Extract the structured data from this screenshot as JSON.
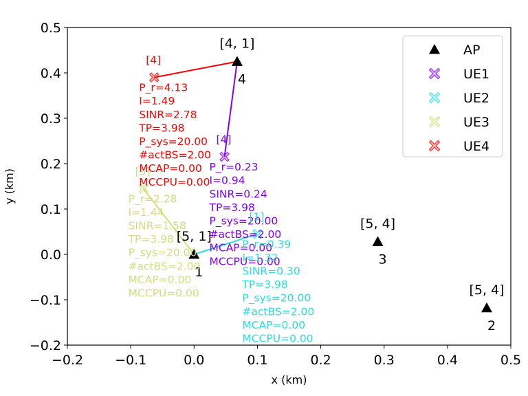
{
  "chart_data": {
    "type": "scatter",
    "xlabel": "x (km)",
    "ylabel": "y (km)",
    "xlim": [
      -0.2,
      0.5
    ],
    "ylim": [
      -0.2,
      0.5
    ],
    "xticks": [
      "−0.2",
      "−0.1",
      "0.0",
      "0.1",
      "0.2",
      "0.3",
      "0.4",
      "0.5"
    ],
    "yticks": [
      "−0.2",
      "−0.1",
      "0.0",
      "0.1",
      "0.2",
      "0.3",
      "0.4",
      "0.5"
    ],
    "xtick_values": [
      -0.2,
      -0.1,
      0.0,
      0.1,
      0.2,
      0.3,
      0.4,
      0.5
    ],
    "ytick_values": [
      -0.2,
      -0.1,
      0.0,
      0.1,
      0.2,
      0.3,
      0.4,
      0.5
    ],
    "legend_position": "top-right",
    "legend": [
      {
        "label": "AP",
        "marker": "triangle",
        "color": "#000000"
      },
      {
        "label": "UE1",
        "marker": "x",
        "color": "#8000ff"
      },
      {
        "label": "UE2",
        "marker": "x",
        "color": "#2adddd"
      },
      {
        "label": "UE3",
        "marker": "x",
        "color": "#d4dd80"
      },
      {
        "label": "UE4",
        "marker": "x",
        "color": "#ff0000"
      }
    ],
    "aps": [
      {
        "id": "1",
        "x": 0.0,
        "y": 0.0,
        "label": "[5, 1]"
      },
      {
        "id": "2",
        "x": 0.462,
        "y": -0.118,
        "label": "[5, 4]"
      },
      {
        "id": "3",
        "x": 0.29,
        "y": 0.028,
        "label": "[5, 4]"
      },
      {
        "id": "4",
        "x": 0.068,
        "y": 0.425,
        "label": "[4, 1]"
      }
    ],
    "ues": [
      {
        "name": "UE1",
        "color": "#8000ff",
        "x": 0.048,
        "y": 0.215,
        "ap": "4",
        "tag": "[4]",
        "lines": [
          "P_r=0.23",
          "I=0.94",
          "SINR=0.24",
          "TP=3.98",
          "P_sys=20.00",
          "#actBS=2.00",
          "MCAP=0.00",
          "MCCPU=0.00"
        ]
      },
      {
        "name": "UE2",
        "color": "#2adddd",
        "x": 0.1,
        "y": 0.045,
        "ap": "1",
        "tag": "[1]",
        "lines": [
          "P_r=0.39",
          "I=1.32",
          "SINR=0.30",
          "TP=3.98",
          "P_sys=20.00",
          "#actBS=2.00",
          "MCAP=0.00",
          "MCCPU=0.00"
        ]
      },
      {
        "name": "UE3",
        "color": "#d4dd80",
        "x": -0.08,
        "y": 0.145,
        "ap": "1",
        "tag": "[5]",
        "lines": [
          "P_r=2.28",
          "I=1.44",
          "SINR=1.58",
          "TP=3.98",
          "P_sys=20.00",
          "#actBS=2.00",
          "MCAP=0.00",
          "MCCPU=0.00"
        ]
      },
      {
        "name": "UE4",
        "color": "#ff0000",
        "x": -0.063,
        "y": 0.39,
        "ap": "4",
        "tag": "[4]",
        "lines": [
          "P_r=4.13",
          "I=1.49",
          "SINR=2.78",
          "TP=3.98",
          "P_sys=20.00",
          "#actBS=2.00",
          "MCAP=0.00",
          "MCCPU=0.00"
        ]
      }
    ]
  }
}
